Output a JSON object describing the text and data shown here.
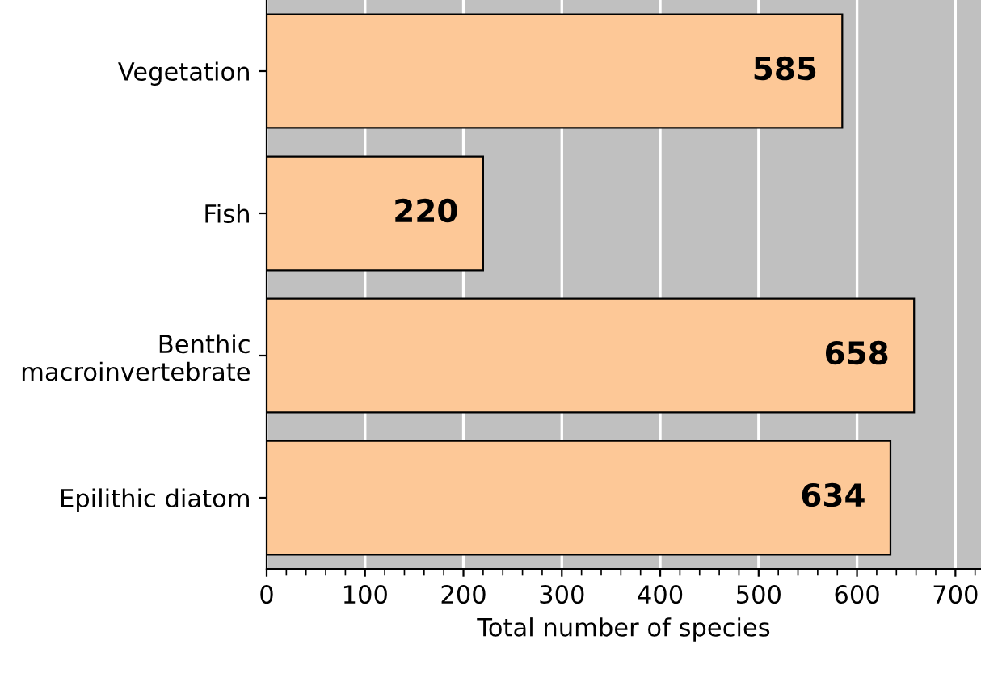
{
  "chart_data": {
    "type": "bar",
    "orientation": "horizontal",
    "categories": [
      "Vegetation",
      "Fish",
      "Benthic\nmacroinvertebrate",
      "Epilithic diatom"
    ],
    "values": [
      585,
      220,
      658,
      634
    ],
    "color": "#fdc897",
    "xlabel": "Total number of species",
    "xlim": [
      0,
      726
    ],
    "xticks": [
      0,
      100,
      200,
      300,
      400,
      500,
      600,
      700
    ],
    "grid": "x",
    "data_labels": true
  }
}
